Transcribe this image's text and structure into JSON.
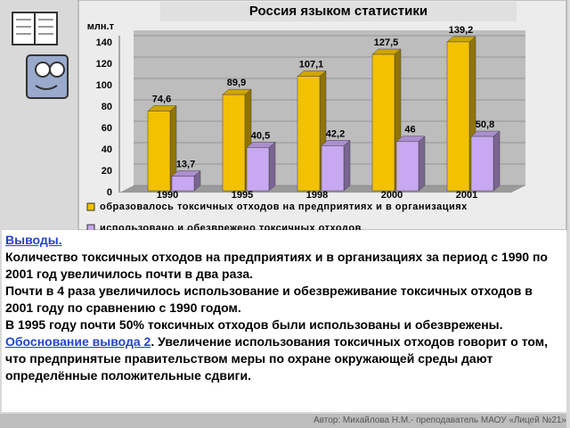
{
  "chart_data": {
    "type": "bar3d",
    "title": "Россия языком статистики",
    "y_unit": "млн.т",
    "categories": [
      "1990",
      "1995",
      "1998",
      "2000",
      "2001"
    ],
    "series": [
      {
        "name": "образовалось токсичных отходов на предприятиях и в организациях",
        "color": "#f2c200",
        "values": [
          74.6,
          89.9,
          107.1,
          127.5,
          139.2
        ],
        "value_labels": [
          "74,6",
          "89,9",
          "107,1",
          "127,5",
          "139,2"
        ]
      },
      {
        "name": "использовано и обезврежено токсичных отходов",
        "color": "#c9a8f2",
        "values": [
          13.7,
          40.5,
          42.2,
          46,
          50.8
        ],
        "value_labels": [
          "13,7",
          "40,5",
          "42,2",
          "46",
          "50,8"
        ]
      }
    ],
    "ylim": [
      0,
      140
    ],
    "yticks": [
      0,
      20,
      40,
      60,
      80,
      100,
      120,
      140
    ],
    "grid": true
  },
  "conclusions": {
    "heading": "Выводы.",
    "points": [
      "Количество токсичных отходов на предприятиях и в организациях за период с 1990 по 2001 год увеличилось почти в два раза.",
      "Почти в 4 раза увеличилось использование и обезвреживание токсичных отходов в 2001 году по сравнению с 1990 годом.",
      "В 1995 году почти 50% токсичных отходов были использованы и обезврежены."
    ],
    "link": "Обоснование вывода 2",
    "link_text": ". Увеличение использования токсичных отходов говорит о том, что предпринятые правительством меры по охране окружающей среды дают определённые положительные сдвиги."
  },
  "footer": "Автор: Михайлова Н.М.- преподаватель МАОУ «Лицей №21»"
}
